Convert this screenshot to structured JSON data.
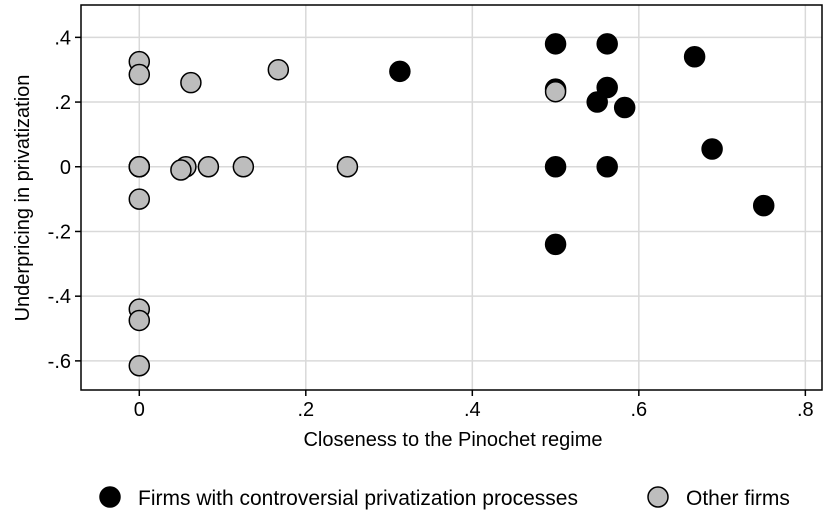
{
  "chart_data": {
    "type": "scatter",
    "title": "",
    "xlabel": "Closeness to the Pinochet regime",
    "ylabel": "Underpricing in privatization",
    "xlim": [
      -0.07,
      0.82
    ],
    "ylim": [
      -0.69,
      0.5
    ],
    "xticks": [
      0,
      0.2,
      0.4,
      0.6,
      0.8
    ],
    "xtick_labels": [
      "0",
      ".2",
      ".4",
      ".6",
      ".8"
    ],
    "yticks": [
      0.4,
      0.2,
      0,
      -0.2,
      -0.4,
      -0.6
    ],
    "ytick_labels": [
      ".4",
      ".2",
      "0",
      "-.2",
      "-.4",
      "-.6"
    ],
    "grid": true,
    "legend_position": "bottom",
    "series": [
      {
        "name": "Firms with controversial privatization processes",
        "color": "#000000",
        "points": [
          {
            "x": 0.5,
            "y": 0.38
          },
          {
            "x": 0.562,
            "y": 0.38
          },
          {
            "x": 0.667,
            "y": 0.34
          },
          {
            "x": 0.313,
            "y": 0.295
          },
          {
            "x": 0.5,
            "y": 0.24
          },
          {
            "x": 0.562,
            "y": 0.245
          },
          {
            "x": 0.55,
            "y": 0.2
          },
          {
            "x": 0.583,
            "y": 0.183
          },
          {
            "x": 0.5,
            "y": 0.0
          },
          {
            "x": 0.562,
            "y": 0.0
          },
          {
            "x": 0.688,
            "y": 0.055
          },
          {
            "x": 0.75,
            "y": -0.12
          },
          {
            "x": 0.5,
            "y": -0.24
          }
        ]
      },
      {
        "name": "Other firms",
        "color": "#bdbdbd",
        "points": [
          {
            "x": 0,
            "y": 0.325
          },
          {
            "x": 0,
            "y": 0.285
          },
          {
            "x": 0.062,
            "y": 0.26
          },
          {
            "x": 0.167,
            "y": 0.3
          },
          {
            "x": 0.5,
            "y": 0.232
          },
          {
            "x": 0,
            "y": 0.0
          },
          {
            "x": 0,
            "y": 0.0
          },
          {
            "x": 0,
            "y": 0.0
          },
          {
            "x": 0.056,
            "y": 0.0
          },
          {
            "x": 0.05,
            "y": -0.01
          },
          {
            "x": 0.083,
            "y": 0.0
          },
          {
            "x": 0.125,
            "y": 0.0
          },
          {
            "x": 0.25,
            "y": 0.0
          },
          {
            "x": 0,
            "y": -0.1
          },
          {
            "x": 0,
            "y": -0.44
          },
          {
            "x": 0,
            "y": -0.475
          },
          {
            "x": 0,
            "y": -0.615
          }
        ]
      }
    ]
  }
}
